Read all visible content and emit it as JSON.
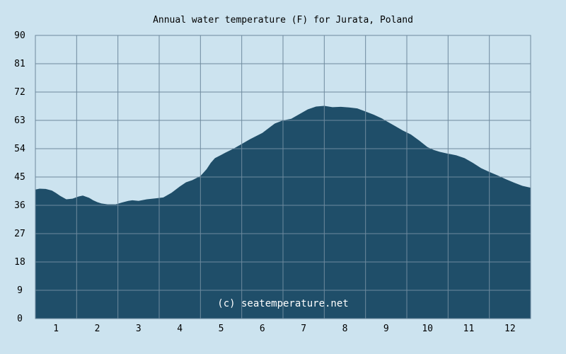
{
  "chart_data": {
    "type": "area",
    "title": "Annual water temperature (F) for Jurata, Poland",
    "watermark": "(c) seatemperature.net",
    "xlabel": "",
    "ylabel": "",
    "categories": [
      "1",
      "2",
      "3",
      "4",
      "5",
      "6",
      "7",
      "8",
      "9",
      "10",
      "11",
      "12"
    ],
    "xlim": [
      0.5,
      12.5
    ],
    "ylim": [
      0,
      90
    ],
    "yticks": [
      "0",
      "9",
      "18",
      "27",
      "36",
      "45",
      "54",
      "63",
      "72",
      "81",
      "90"
    ],
    "grid": true,
    "legend": "none",
    "colors": {
      "fill": "#1f4e69",
      "background": "#cce3ef",
      "grid": "#6e8a9e"
    },
    "series": [
      {
        "x": [
          0.5,
          0.6,
          0.75,
          0.9,
          1.0,
          1.1,
          1.25,
          1.4,
          1.55,
          1.65,
          1.8,
          1.9,
          2.0,
          2.1,
          2.25,
          2.45,
          2.6,
          2.75,
          2.85,
          3.0,
          3.2,
          3.4,
          3.6,
          3.8,
          4.0,
          4.15,
          4.3,
          4.5,
          4.65,
          4.75,
          4.85,
          5.0,
          5.1,
          5.3,
          5.5,
          5.7,
          6.0,
          6.3,
          6.5,
          6.7,
          6.9,
          7.1,
          7.3,
          7.5,
          7.7,
          7.9,
          8.1,
          8.3,
          8.5,
          8.7,
          8.9,
          9.0,
          9.2,
          9.4,
          9.6,
          9.8,
          10.0,
          10.15,
          10.3,
          10.5,
          10.7,
          10.9,
          11.1,
          11.3,
          11.5,
          11.7,
          11.9,
          12.1,
          12.3,
          12.5
        ],
        "values": [
          41.0,
          41.3,
          41.2,
          40.7,
          39.9,
          39.0,
          37.9,
          38.1,
          38.8,
          39.1,
          38.4,
          37.6,
          37.0,
          36.6,
          36.3,
          36.3,
          36.9,
          37.4,
          37.6,
          37.4,
          37.9,
          38.2,
          38.5,
          40.0,
          42.0,
          43.3,
          44.0,
          45.3,
          47.5,
          49.5,
          51.0,
          52.0,
          52.7,
          54.0,
          55.5,
          57.0,
          59.0,
          62.0,
          63.0,
          63.5,
          65.0,
          66.5,
          67.4,
          67.6,
          67.2,
          67.3,
          67.1,
          66.8,
          65.8,
          64.8,
          63.6,
          62.8,
          61.3,
          59.8,
          58.5,
          56.6,
          54.5,
          53.6,
          53.0,
          52.4,
          51.9,
          51.0,
          49.5,
          47.8,
          46.6,
          45.5,
          44.3,
          43.2,
          42.2,
          41.6
        ]
      }
    ]
  }
}
